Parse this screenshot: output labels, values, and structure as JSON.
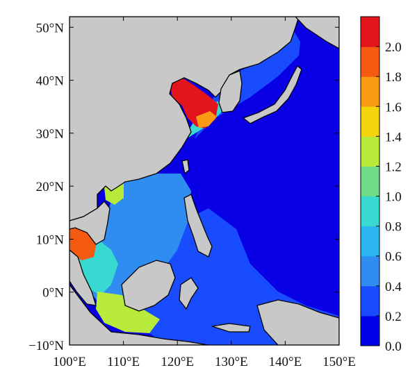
{
  "map": {
    "x_axis": {
      "ticks": [
        "100°E",
        "110°E",
        "120°E",
        "130°E",
        "140°E",
        "150°E"
      ],
      "range": [
        100,
        150
      ]
    },
    "y_axis": {
      "ticks": [
        "50°N",
        "40°N",
        "30°N",
        "20°N",
        "10°N",
        "0°N",
        "−10°N"
      ],
      "range": [
        -10,
        52
      ]
    },
    "land_color": "#c8c8c8",
    "coastline_color": "#000000",
    "field_min_color": "#0a00e6",
    "hotspots": [
      "Bohai / Yellow Sea",
      "Gulf of Thailand",
      "Java Sea"
    ]
  },
  "colorbar": {
    "min": 0.0,
    "max": 2.2,
    "step": 0.2,
    "labels": [
      "2.0",
      "1.8",
      "1.6",
      "1.4",
      "1.2",
      "1.0",
      "0.8",
      "0.6",
      "0.4",
      "0.2",
      "0.0"
    ],
    "colors": [
      "#0000e6",
      "#1a4cff",
      "#2f8cf0",
      "#2ab4f0",
      "#37d9d0",
      "#6fdc8a",
      "#b7ea3a",
      "#f5d60e",
      "#fb9a14",
      "#f55a12",
      "#e3141a"
    ]
  }
}
